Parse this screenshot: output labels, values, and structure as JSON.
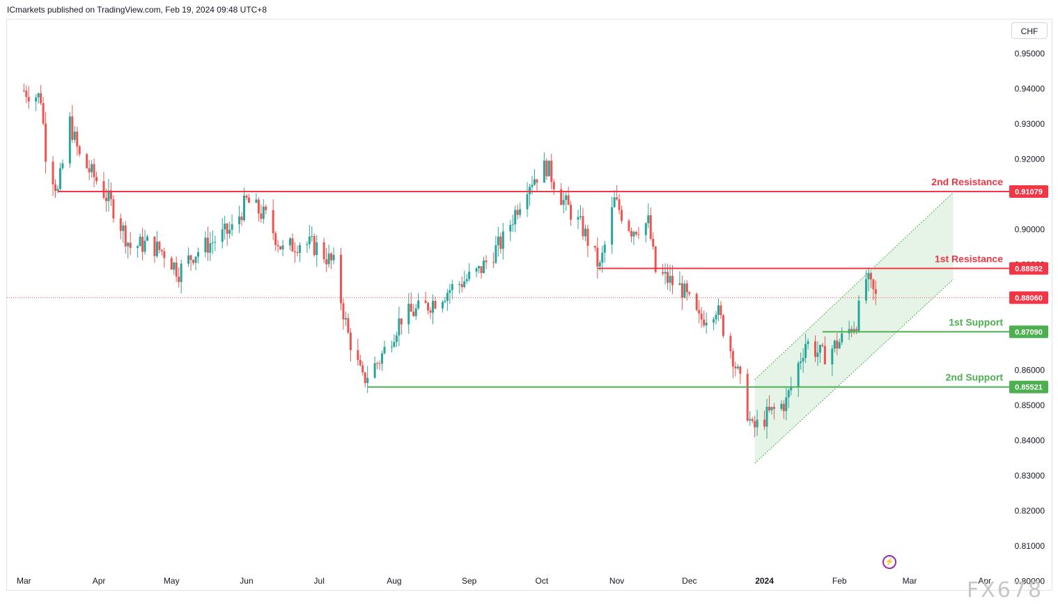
{
  "header": {
    "published": "ICmarkets published on TradingView.com, Feb 19, 2024 09:48 UTC+8"
  },
  "currency_button": "CHF",
  "watermark": "FX678",
  "lightning_icon": "lightning-icon",
  "colors": {
    "up": "#26a69a",
    "down": "#ef5350",
    "resistance": "#f23645",
    "support": "#4caf50",
    "channel_fill": "#c8e6c9",
    "channel_line": "#4caf50"
  },
  "chart_data": {
    "type": "candlestick",
    "symbol_currency": "CHF",
    "y_ticks": [
      "0.95000",
      "0.94000",
      "0.93000",
      "0.92000",
      "0.91000",
      "0.90000",
      "0.89000",
      "0.88000",
      "0.87000",
      "0.86000",
      "0.85000",
      "0.84000",
      "0.83000",
      "0.82000",
      "0.81000",
      "0.80000"
    ],
    "y_values": [
      0.95,
      0.94,
      0.93,
      0.92,
      0.91,
      0.9,
      0.89,
      0.88,
      0.87,
      0.86,
      0.85,
      0.84,
      0.83,
      0.82,
      0.81,
      0.8
    ],
    "ylim": [
      0.7975,
      0.9597
    ],
    "x_ticks": [
      "Mar",
      "Apr",
      "May",
      "Jun",
      "Jul",
      "Aug",
      "Sep",
      "Oct",
      "Nov",
      "Dec",
      "2024",
      "Feb",
      "Mar",
      "Apr"
    ],
    "x_tick_dates": [
      "2023-03-01",
      "2023-04-01",
      "2023-05-01",
      "2023-06-01",
      "2023-07-01",
      "2023-08-01",
      "2023-09-01",
      "2023-10-01",
      "2023-11-01",
      "2023-12-01",
      "2024-01-01",
      "2024-02-01",
      "2024-03-01",
      "2024-04-01"
    ],
    "levels": [
      {
        "name": "2nd Resistance",
        "value": "0.91079",
        "kind": "resistance",
        "start_date": "2023-03-15"
      },
      {
        "name": "1st Resistance",
        "value": "0.88892",
        "kind": "resistance",
        "start_date": "2023-10-24"
      },
      {
        "name": "1st Support",
        "value": "0.87090",
        "kind": "support",
        "start_date": "2024-01-25"
      },
      {
        "name": "2nd Support",
        "value": "0.85521",
        "kind": "support",
        "start_date": "2023-07-21"
      }
    ],
    "last_price": "0.88060",
    "channel": {
      "lower": [
        {
          "date": "2023-12-28",
          "value": 0.8335
        },
        {
          "date": "2024-03-19",
          "value": 0.8858
        }
      ],
      "upper": [
        {
          "date": "2023-12-28",
          "value": 0.8573
        },
        {
          "date": "2024-03-19",
          "value": 0.9105
        }
      ]
    },
    "closes": [
      {
        "date": "2023-03-01",
        "close": 0.9395
      },
      {
        "date": "2023-03-08",
        "close": 0.9375
      },
      {
        "date": "2023-03-10",
        "close": 0.922
      },
      {
        "date": "2023-03-15",
        "close": 0.9105
      },
      {
        "date": "2023-03-20",
        "close": 0.9305
      },
      {
        "date": "2023-03-24",
        "close": 0.9205
      },
      {
        "date": "2023-03-31",
        "close": 0.914
      },
      {
        "date": "2023-04-07",
        "close": 0.906
      },
      {
        "date": "2023-04-14",
        "close": 0.895
      },
      {
        "date": "2023-04-21",
        "close": 0.896
      },
      {
        "date": "2023-04-28",
        "close": 0.8935
      },
      {
        "date": "2023-05-04",
        "close": 0.888
      },
      {
        "date": "2023-05-10",
        "close": 0.893
      },
      {
        "date": "2023-05-19",
        "close": 0.897
      },
      {
        "date": "2023-05-26",
        "close": 0.9
      },
      {
        "date": "2023-06-01",
        "close": 0.908
      },
      {
        "date": "2023-06-09",
        "close": 0.9035
      },
      {
        "date": "2023-06-16",
        "close": 0.894
      },
      {
        "date": "2023-06-23",
        "close": 0.8965
      },
      {
        "date": "2023-06-30",
        "close": 0.895
      },
      {
        "date": "2023-07-07",
        "close": 0.89
      },
      {
        "date": "2023-07-13",
        "close": 0.87
      },
      {
        "date": "2023-07-19",
        "close": 0.857
      },
      {
        "date": "2023-07-26",
        "close": 0.863
      },
      {
        "date": "2023-08-04",
        "close": 0.875
      },
      {
        "date": "2023-08-14",
        "close": 0.878
      },
      {
        "date": "2023-08-24",
        "close": 0.883
      },
      {
        "date": "2023-09-05",
        "close": 0.888
      },
      {
        "date": "2023-09-15",
        "close": 0.897
      },
      {
        "date": "2023-09-25",
        "close": 0.913
      },
      {
        "date": "2023-10-03",
        "close": 0.918
      },
      {
        "date": "2023-10-10",
        "close": 0.908
      },
      {
        "date": "2023-10-18",
        "close": 0.9
      },
      {
        "date": "2023-10-25",
        "close": 0.889
      },
      {
        "date": "2023-10-31",
        "close": 0.908
      },
      {
        "date": "2023-11-07",
        "close": 0.9
      },
      {
        "date": "2023-11-14",
        "close": 0.902
      },
      {
        "date": "2023-11-17",
        "close": 0.888
      },
      {
        "date": "2023-11-28",
        "close": 0.883
      },
      {
        "date": "2023-12-05",
        "close": 0.874
      },
      {
        "date": "2023-12-12",
        "close": 0.878
      },
      {
        "date": "2023-12-19",
        "close": 0.864
      },
      {
        "date": "2023-12-27",
        "close": 0.843
      },
      {
        "date": "2024-01-02",
        "close": 0.847
      },
      {
        "date": "2024-01-10",
        "close": 0.851
      },
      {
        "date": "2024-01-18",
        "close": 0.868
      },
      {
        "date": "2024-01-25",
        "close": 0.864
      },
      {
        "date": "2024-02-01",
        "close": 0.868
      },
      {
        "date": "2024-02-08",
        "close": 0.874
      },
      {
        "date": "2024-02-12",
        "close": 0.886
      },
      {
        "date": "2024-02-16",
        "close": 0.8806
      }
    ]
  }
}
